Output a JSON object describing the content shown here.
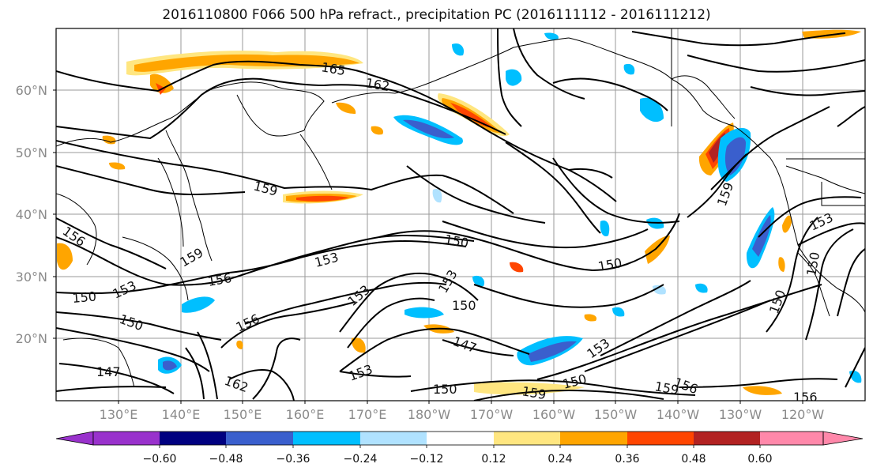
{
  "title": "2016110800 F066 500 hPa refract., precipitation PC (2016111112 - 2016111212)",
  "lat_labels": [
    "60°N",
    "50°N",
    "40°N",
    "30°N",
    "20°N"
  ],
  "lon_labels": [
    "130°E",
    "140°E",
    "150°E",
    "160°E",
    "170°E",
    "180°W",
    "170°W",
    "160°W",
    "150°W",
    "140°W",
    "130°W",
    "120°W"
  ],
  "colorbar": {
    "labels": [
      "−0.60",
      "−0.48",
      "−0.36",
      "−0.24",
      "−0.12",
      "0.12",
      "0.24",
      "0.36",
      "0.48",
      "0.60"
    ],
    "colors": [
      "#9932cc",
      "#000080",
      "#3a5fcd",
      "#00bfff",
      "#b0e2ff",
      "#ffffff",
      "#ffe680",
      "#ffa500",
      "#ff4500",
      "#b22222",
      "#ff88aa"
    ]
  },
  "contour_labels": [
    "165",
    "162",
    "159",
    "156",
    "159",
    "153",
    "156",
    "150",
    "150",
    "153",
    "147",
    "150",
    "153",
    "156",
    "150",
    "147",
    "153",
    "162",
    "150",
    "153",
    "150",
    "159",
    "156",
    "159",
    "156",
    "150",
    "153",
    "150",
    "150",
    "153",
    "159"
  ]
}
